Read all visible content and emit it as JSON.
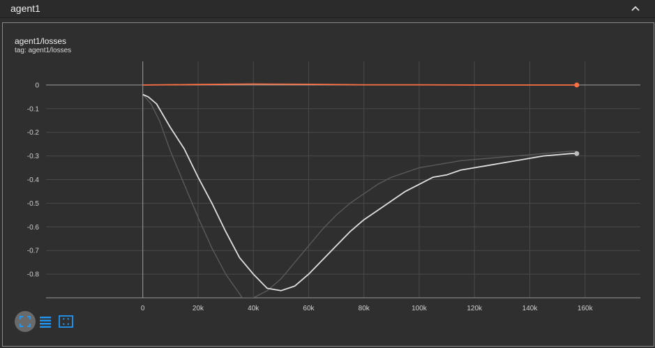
{
  "header": {
    "title": "agent1",
    "collapse_icon": "chevron-up-icon"
  },
  "card": {
    "title": "agent1/losses",
    "tag": "tag: agent1/losses"
  },
  "toolbar": {
    "fit_icon": "fit-domain-icon",
    "lines_icon": "toggle-lines-icon",
    "select_icon": "select-region-icon",
    "accent": "#2196f3"
  },
  "colors": {
    "background": "#2f2f2f",
    "orange_series": "#ff7043",
    "white_series": "#e0e0e0",
    "raw_series": "#5a5a5a"
  },
  "chart_data": {
    "type": "line",
    "grid": true,
    "xlim": [
      -35000,
      180000
    ],
    "ylim": [
      -0.9,
      0.1
    ],
    "x_ticks": [
      0,
      20000,
      40000,
      60000,
      80000,
      100000,
      120000,
      140000,
      160000
    ],
    "x_tick_labels": [
      "0",
      "20k",
      "40k",
      "60k",
      "80k",
      "100k",
      "120k",
      "140k",
      "160k"
    ],
    "y_ticks": [
      0,
      -0.1,
      -0.2,
      -0.3,
      -0.4,
      -0.5,
      -0.6,
      -0.7,
      -0.8
    ],
    "y_tick_labels": [
      "0",
      "-0.1",
      "-0.2",
      "-0.3",
      "-0.4",
      "-0.5",
      "-0.6",
      "-0.7",
      "-0.8"
    ],
    "series": [
      {
        "key": "orange",
        "color": "#ff7043",
        "x": [
          0,
          20000,
          40000,
          60000,
          80000,
          100000,
          120000,
          140000,
          157000
        ],
        "y": [
          0.0,
          0.002,
          0.004,
          0.003,
          0.001,
          0.001,
          0.0,
          0.0,
          0.0
        ]
      },
      {
        "key": "white-smoothed",
        "color": "#e0e0e0",
        "x": [
          0,
          2000,
          5000,
          10000,
          15000,
          20000,
          25000,
          30000,
          35000,
          40000,
          45000,
          50000,
          55000,
          60000,
          65000,
          70000,
          75000,
          80000,
          85000,
          90000,
          95000,
          100000,
          105000,
          110000,
          115000,
          120000,
          125000,
          130000,
          135000,
          140000,
          145000,
          150000,
          155000,
          157000
        ],
        "y": [
          -0.04,
          -0.05,
          -0.08,
          -0.18,
          -0.27,
          -0.39,
          -0.5,
          -0.62,
          -0.73,
          -0.8,
          -0.86,
          -0.87,
          -0.85,
          -0.8,
          -0.74,
          -0.68,
          -0.62,
          -0.57,
          -0.53,
          -0.49,
          -0.45,
          -0.42,
          -0.39,
          -0.38,
          -0.36,
          -0.35,
          -0.34,
          -0.33,
          -0.32,
          -0.31,
          -0.3,
          -0.295,
          -0.29,
          -0.29
        ]
      },
      {
        "key": "white-raw",
        "color": "#5a5a5a",
        "x": [
          0,
          3000,
          6000,
          10000,
          15000,
          20000,
          25000,
          30000,
          33000,
          36000,
          40000,
          45000,
          50000,
          55000,
          60000,
          65000,
          70000,
          75000,
          80000,
          85000,
          90000,
          95000,
          100000,
          105000,
          110000,
          115000,
          120000,
          125000,
          130000,
          135000,
          140000,
          145000,
          150000,
          155000,
          157000
        ],
        "y": [
          -0.04,
          -0.08,
          -0.15,
          -0.28,
          -0.42,
          -0.56,
          -0.69,
          -0.8,
          -0.85,
          -0.9,
          -0.9,
          -0.87,
          -0.82,
          -0.75,
          -0.68,
          -0.61,
          -0.55,
          -0.5,
          -0.46,
          -0.42,
          -0.39,
          -0.37,
          -0.35,
          -0.34,
          -0.33,
          -0.32,
          -0.315,
          -0.31,
          -0.305,
          -0.3,
          -0.295,
          -0.29,
          -0.285,
          -0.28,
          -0.28
        ]
      }
    ]
  }
}
